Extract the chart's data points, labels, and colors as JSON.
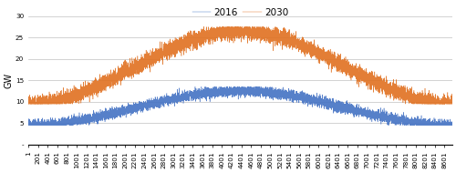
{
  "title": "",
  "ylabel": "GW",
  "xlabel": "",
  "ylim": [
    0,
    30
  ],
  "yticks": [
    0,
    5,
    10,
    15,
    20,
    25,
    30
  ],
  "ytick_labels": [
    "-",
    "5",
    "10",
    "15",
    "20",
    "25",
    "30"
  ],
  "xtick_positions": [
    1,
    201,
    401,
    601,
    801,
    1001,
    1201,
    1401,
    1601,
    1801,
    2001,
    2201,
    2401,
    2601,
    2801,
    3001,
    3201,
    3401,
    3601,
    3801,
    4001,
    4201,
    4401,
    4601,
    4801,
    5001,
    5201,
    5401,
    5601,
    5801,
    6001,
    6201,
    6401,
    6601,
    6801,
    7001,
    7201,
    7401,
    7601,
    7801,
    8001,
    8201,
    8401,
    8601
  ],
  "xtick_labels": [
    "1",
    "201",
    "401",
    "601",
    "801",
    "1001",
    "1201",
    "1401",
    "1601",
    "1801",
    "2001",
    "2201",
    "2401",
    "2601",
    "2801",
    "3001",
    "3201",
    "3401",
    "3601",
    "3801",
    "4001",
    "4201",
    "4401",
    "4601",
    "4801",
    "5001",
    "5201",
    "5401",
    "5601",
    "5801",
    "6001",
    "6201",
    "6401",
    "6601",
    "6801",
    "7001",
    "7201",
    "7401",
    "7601",
    "7801",
    "8001",
    "8201",
    "8401",
    "8601"
  ],
  "color_2016": "#4472C4",
  "color_2030": "#E07020",
  "legend_2016": "2016",
  "legend_2030": "2030",
  "background_color": "#FFFFFF",
  "grid_color": "#C0C0C0",
  "label_fontsize": 7,
  "tick_fontsize": 5.2,
  "legend_fontsize": 7.5,
  "base_2016": 8.5,
  "amp_2016": 4.0,
  "noise_2016": 0.6,
  "clip_lo_2016": 4.5,
  "clip_hi_2016": 13.5,
  "base_2030": 18.0,
  "amp_2030": 8.5,
  "noise_2030": 0.9,
  "clip_lo_2030": 9.5,
  "clip_hi_2030": 27.5
}
